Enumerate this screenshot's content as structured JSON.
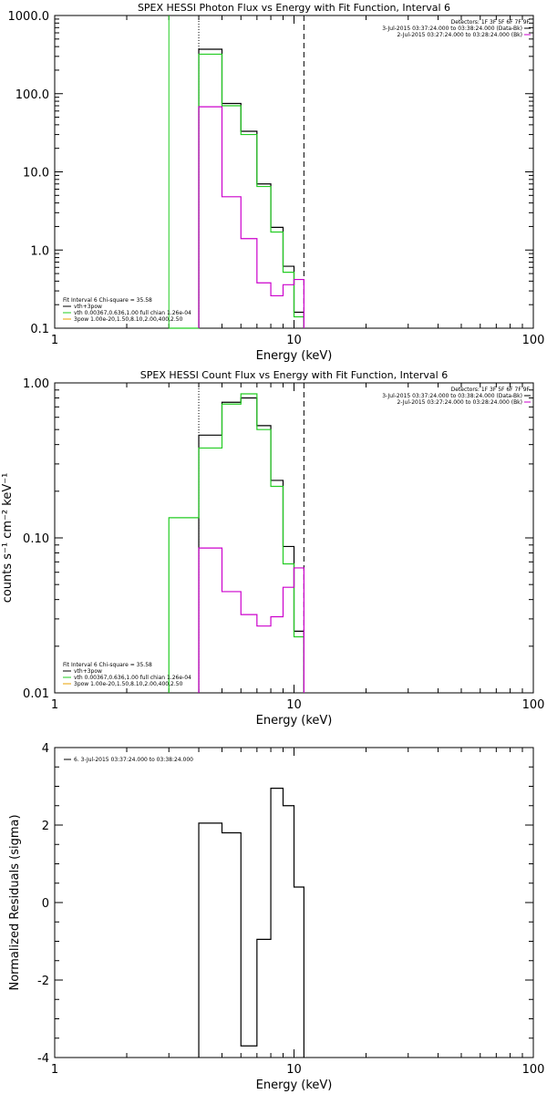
{
  "chart_data": [
    {
      "type": "line",
      "title": "SPEX HESSI Photon Flux vs Energy with Fit Function, Interval 6",
      "xlabel": "Energy (keV)",
      "ylabel": "",
      "xscale": "log",
      "yscale": "log",
      "xlim": [
        1,
        100
      ],
      "ylim": [
        0.1,
        1000
      ],
      "xticks": [
        "1",
        "10",
        "100"
      ],
      "yticks": [
        {
          "v": 0.1,
          "label": "0.1"
        },
        {
          "v": 1,
          "label": "1.0"
        },
        {
          "v": 10,
          "label": "10.0"
        },
        {
          "v": 100,
          "label": "100.0"
        },
        {
          "v": 1000,
          "label": "1000.0"
        }
      ],
      "legend_topright": {
        "header": "Detectors: 1F 3F 5F 6F 7F 9F",
        "items": [
          {
            "text": "3-Jul-2015 03:37:24.000 to 03:38:24.000 (Data-Bk)",
            "color": "#000000"
          },
          {
            "text": "2-Jul-2015 03:27:24.000 to 03:28:24.000 (Bk)",
            "color": "#cc00cc"
          }
        ]
      },
      "legend_bottomleft": {
        "header": "Fit Interval 6   Chi-square = 35.58",
        "items": [
          {
            "text": "vth+3pow",
            "color": "#000000"
          },
          {
            "text": "vth 0.00367,0.636,1.00  full chian 1.26e-04",
            "color": "#22cc22"
          },
          {
            "text": "3pow 1.00e-20,1.50,8.10,2.00,400,2.50",
            "color": "#e8a000"
          }
        ]
      },
      "vlines": [
        {
          "x": 3.0,
          "style": "solid",
          "color": "#22cc22"
        },
        {
          "x": 4.0,
          "style": "dotted",
          "color": "#000000"
        },
        {
          "x": 11.0,
          "style": "dashed",
          "color": "#000000"
        }
      ],
      "series": [
        {
          "color": "#000000",
          "edges": [
            4,
            5,
            6,
            7,
            8,
            9,
            10,
            11
          ],
          "values": [
            370,
            75,
            33,
            7,
            1.95,
            0.62,
            0.16
          ]
        },
        {
          "color": "#22cc22",
          "edges": [
            3,
            4,
            5,
            6,
            7,
            8,
            9,
            10,
            11
          ],
          "values": [
            0.1,
            320,
            70,
            30,
            6.5,
            1.7,
            0.52,
            0.14
          ]
        },
        {
          "color": "#cc00cc",
          "edges": [
            4,
            5,
            6,
            7,
            8,
            9,
            10,
            11
          ],
          "values": [
            68,
            4.8,
            1.4,
            0.38,
            0.26,
            0.36,
            0.42
          ]
        }
      ]
    },
    {
      "type": "line",
      "title": "SPEX HESSI Count Flux vs Energy with Fit Function, Interval 6",
      "xlabel": "Energy (keV)",
      "ylabel": "counts s⁻¹ cm⁻² keV⁻¹",
      "xscale": "log",
      "yscale": "log",
      "xlim": [
        1,
        100
      ],
      "ylim": [
        0.01,
        1
      ],
      "xticks": [
        "1",
        "10",
        "100"
      ],
      "yticks": [
        {
          "v": 0.01,
          "label": "0.01"
        },
        {
          "v": 0.1,
          "label": "0.10"
        },
        {
          "v": 1,
          "label": "1.00"
        }
      ],
      "legend_topright": {
        "header": "Detectors: 1F 3F 5F 6F 7F 9F",
        "items": [
          {
            "text": "3-Jul-2015 03:37:24.000 to 03:38:24.000 (Data-Bk)",
            "color": "#000000"
          },
          {
            "text": "2-Jul-2015 03:27:24.000 to 03:28:24.000 (Bk)",
            "color": "#cc00cc"
          }
        ]
      },
      "legend_bottomleft": {
        "header": "Fit Interval 6   Chi-square = 35.58",
        "items": [
          {
            "text": "vth+3pow",
            "color": "#000000"
          },
          {
            "text": "vth 0.00367,0.636,1.00  full chian 1.26e-04",
            "color": "#22cc22"
          },
          {
            "text": "3pow 1.00e-20,1.50,8.10,2.00,400,2.50",
            "color": "#e8a000"
          }
        ]
      },
      "vlines": [
        {
          "x": 4.0,
          "style": "dotted",
          "color": "#000000"
        },
        {
          "x": 11.0,
          "style": "dashed",
          "color": "#000000"
        }
      ],
      "series": [
        {
          "color": "#000000",
          "edges": [
            4,
            5,
            6,
            7,
            8,
            9,
            10,
            11
          ],
          "values": [
            0.46,
            0.75,
            0.8,
            0.53,
            0.235,
            0.088,
            0.025
          ]
        },
        {
          "color": "#22cc22",
          "edges": [
            3,
            4,
            5,
            6,
            7,
            8,
            9,
            10,
            11
          ],
          "values": [
            0.135,
            0.38,
            0.73,
            0.85,
            0.5,
            0.215,
            0.068,
            0.023
          ]
        },
        {
          "color": "#cc00cc",
          "edges": [
            4,
            5,
            6,
            7,
            8,
            9,
            10,
            11
          ],
          "values": [
            0.086,
            0.045,
            0.032,
            0.027,
            0.031,
            0.048,
            0.064
          ]
        }
      ]
    },
    {
      "type": "line",
      "title": "",
      "xlabel": "Energy (keV)",
      "ylabel": "Normalized Residuals (sigma)",
      "xscale": "log",
      "yscale": "linear",
      "xlim": [
        1,
        100
      ],
      "ylim": [
        -4,
        4
      ],
      "xticks": [
        "1",
        "10",
        "100"
      ],
      "yticks": [
        {
          "v": -4,
          "label": "-4"
        },
        {
          "v": -2,
          "label": "-2"
        },
        {
          "v": 0,
          "label": "0"
        },
        {
          "v": 2,
          "label": "2"
        },
        {
          "v": 4,
          "label": "4"
        }
      ],
      "legend_topleft": {
        "items": [
          {
            "text": "6.  3-Jul-2015 03:37:24.000 to 03:38:24.000",
            "color": "#000000"
          }
        ]
      },
      "series": [
        {
          "color": "#000000",
          "edges": [
            4,
            5,
            6,
            7,
            8,
            9,
            10,
            11
          ],
          "values": [
            2.05,
            1.8,
            -3.7,
            -0.95,
            2.95,
            2.5,
            0.4
          ]
        }
      ]
    }
  ]
}
